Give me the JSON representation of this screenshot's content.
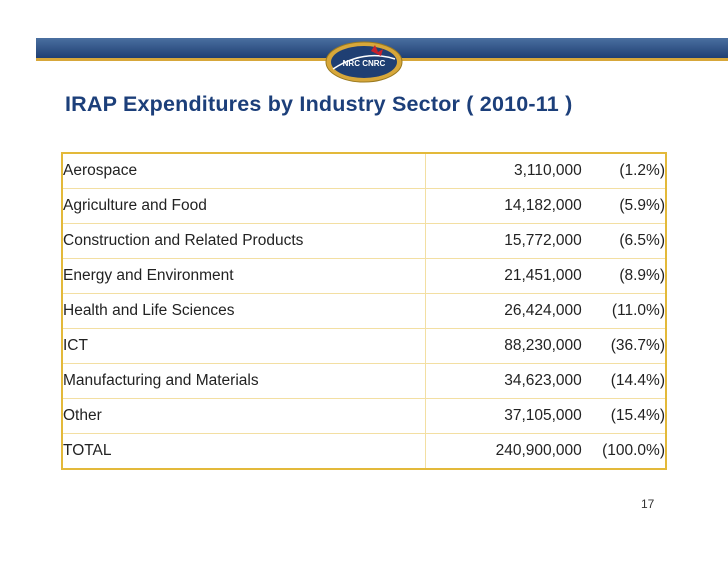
{
  "slide": {
    "title": "IRAP Expenditures by Industry Sector ( 2010-11 )",
    "logo_text": "NRC CNRC",
    "page_number": "17"
  },
  "colors": {
    "title": "#1c3f7a",
    "band": "#1f3f73",
    "table_border": "#e3b93a"
  },
  "table": {
    "rows": [
      {
        "sector": "Aerospace",
        "amount": "3,110,000",
        "percent": "(1.2%)"
      },
      {
        "sector": "Agriculture and Food",
        "amount": "14,182,000",
        "percent": "(5.9%)"
      },
      {
        "sector": "Construction and Related Products",
        "amount": "15,772,000",
        "percent": "(6.5%)"
      },
      {
        "sector": "Energy and Environment",
        "amount": "21,451,000",
        "percent": "(8.9%)"
      },
      {
        "sector": "Health and Life Sciences",
        "amount": "26,424,000",
        "percent": "(11.0%)"
      },
      {
        "sector": "ICT",
        "amount": "88,230,000",
        "percent": "(36.7%)"
      },
      {
        "sector": "Manufacturing and Materials",
        "amount": "34,623,000",
        "percent": "(14.4%)"
      },
      {
        "sector": "Other",
        "amount": "37,105,000",
        "percent": "(15.4%)"
      },
      {
        "sector": "TOTAL",
        "amount": "240,900,000",
        "percent": "(100.0%)"
      }
    ]
  }
}
